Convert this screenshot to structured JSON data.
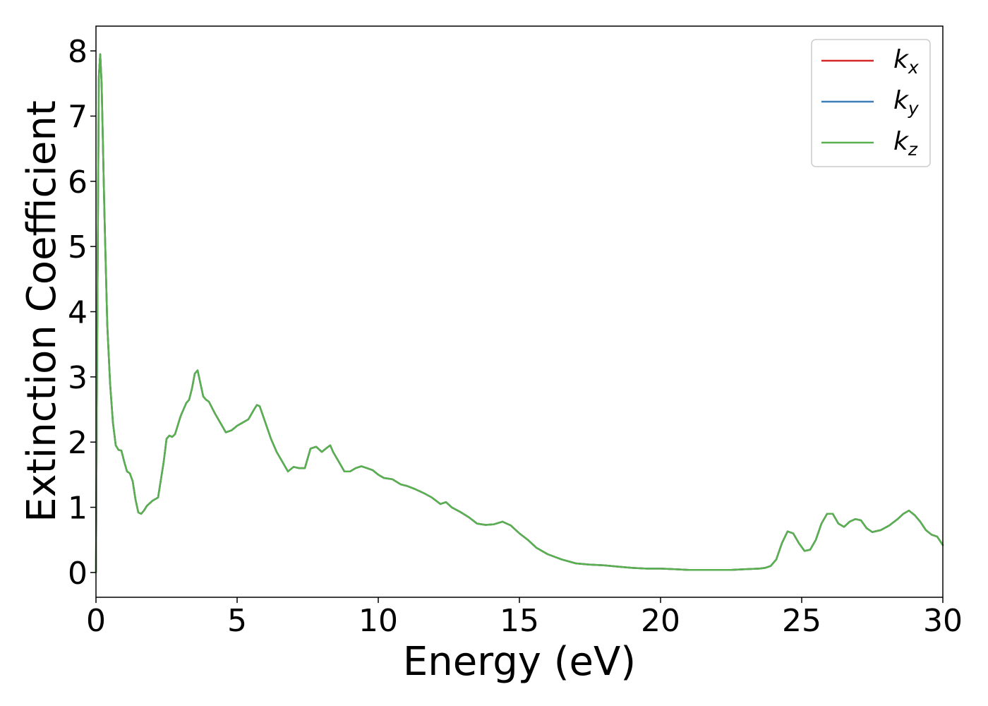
{
  "chart_data": {
    "type": "line",
    "title": "",
    "xlabel": "Energy (eV)",
    "ylabel": "Extinction Coefficient",
    "xlim": [
      0,
      30
    ],
    "ylim": [
      -0.38,
      8.38
    ],
    "xticks": [
      "0",
      "5",
      "10",
      "15",
      "20",
      "25",
      "30"
    ],
    "yticks": [
      "0",
      "1",
      "2",
      "3",
      "4",
      "5",
      "6",
      "7",
      "8"
    ],
    "grid": false,
    "legend": {
      "placement": "top-right"
    },
    "x": [
      0,
      0.05,
      0.1,
      0.15,
      0.2,
      0.3,
      0.4,
      0.5,
      0.6,
      0.7,
      0.8,
      0.9,
      1.0,
      1.1,
      1.2,
      1.3,
      1.4,
      1.5,
      1.6,
      1.7,
      1.8,
      2.0,
      2.2,
      2.4,
      2.5,
      2.6,
      2.7,
      2.8,
      3.0,
      3.2,
      3.3,
      3.4,
      3.5,
      3.6,
      3.7,
      3.8,
      3.9,
      4.0,
      4.2,
      4.4,
      4.6,
      4.8,
      5.0,
      5.2,
      5.4,
      5.6,
      5.7,
      5.8,
      6.0,
      6.2,
      6.4,
      6.6,
      6.8,
      7.0,
      7.2,
      7.4,
      7.6,
      7.8,
      8.0,
      8.2,
      8.3,
      8.4,
      8.6,
      8.8,
      9.0,
      9.2,
      9.4,
      9.6,
      9.8,
      10.0,
      10.2,
      10.5,
      10.8,
      11.0,
      11.3,
      11.6,
      11.9,
      12.2,
      12.4,
      12.6,
      12.9,
      13.2,
      13.5,
      13.8,
      14.1,
      14.4,
      14.7,
      15.0,
      15.3,
      15.6,
      16.0,
      16.5,
      17.0,
      17.5,
      18.0,
      18.5,
      19.0,
      19.5,
      20.0,
      20.5,
      21.0,
      21.5,
      22.0,
      22.5,
      23.0,
      23.5,
      23.7,
      23.9,
      24.1,
      24.3,
      24.5,
      24.7,
      24.9,
      25.1,
      25.3,
      25.5,
      25.7,
      25.9,
      26.1,
      26.3,
      26.5,
      26.7,
      26.9,
      27.1,
      27.3,
      27.5,
      27.8,
      28.1,
      28.4,
      28.6,
      28.8,
      29.0,
      29.2,
      29.4,
      29.6,
      29.8,
      30.0
    ],
    "series": [
      {
        "name": "k_x",
        "color": "#d62728",
        "values": [
          0.0,
          4.0,
          7.6,
          7.95,
          7.5,
          5.5,
          3.8,
          2.9,
          2.3,
          1.95,
          1.88,
          1.87,
          1.7,
          1.55,
          1.52,
          1.4,
          1.12,
          0.92,
          0.9,
          0.95,
          1.02,
          1.1,
          1.15,
          1.7,
          2.05,
          2.1,
          2.08,
          2.12,
          2.4,
          2.6,
          2.65,
          2.82,
          3.05,
          3.1,
          2.9,
          2.7,
          2.65,
          2.62,
          2.45,
          2.3,
          2.15,
          2.18,
          2.25,
          2.3,
          2.35,
          2.5,
          2.57,
          2.55,
          2.3,
          2.05,
          1.85,
          1.7,
          1.55,
          1.62,
          1.6,
          1.6,
          1.9,
          1.93,
          1.85,
          1.92,
          1.95,
          1.85,
          1.7,
          1.55,
          1.55,
          1.6,
          1.63,
          1.6,
          1.57,
          1.5,
          1.45,
          1.43,
          1.35,
          1.33,
          1.28,
          1.22,
          1.15,
          1.05,
          1.08,
          1.0,
          0.93,
          0.85,
          0.75,
          0.73,
          0.74,
          0.78,
          0.72,
          0.6,
          0.5,
          0.38,
          0.28,
          0.2,
          0.14,
          0.12,
          0.11,
          0.09,
          0.07,
          0.06,
          0.06,
          0.05,
          0.04,
          0.04,
          0.04,
          0.04,
          0.05,
          0.06,
          0.07,
          0.1,
          0.2,
          0.45,
          0.63,
          0.6,
          0.45,
          0.33,
          0.35,
          0.5,
          0.75,
          0.9,
          0.9,
          0.75,
          0.7,
          0.78,
          0.82,
          0.8,
          0.68,
          0.62,
          0.65,
          0.72,
          0.82,
          0.9,
          0.95,
          0.88,
          0.78,
          0.65,
          0.58,
          0.55,
          0.42
        ]
      },
      {
        "name": "k_y",
        "color": "#3a7fb8",
        "values": [
          0.0,
          4.0,
          7.6,
          7.95,
          7.5,
          5.5,
          3.8,
          2.9,
          2.3,
          1.95,
          1.88,
          1.87,
          1.7,
          1.55,
          1.52,
          1.4,
          1.12,
          0.92,
          0.9,
          0.95,
          1.02,
          1.1,
          1.15,
          1.7,
          2.05,
          2.1,
          2.08,
          2.12,
          2.4,
          2.6,
          2.65,
          2.82,
          3.05,
          3.1,
          2.9,
          2.7,
          2.65,
          2.62,
          2.45,
          2.3,
          2.15,
          2.18,
          2.25,
          2.3,
          2.35,
          2.5,
          2.57,
          2.55,
          2.3,
          2.05,
          1.85,
          1.7,
          1.55,
          1.62,
          1.6,
          1.6,
          1.9,
          1.93,
          1.85,
          1.92,
          1.95,
          1.85,
          1.7,
          1.55,
          1.55,
          1.6,
          1.63,
          1.6,
          1.57,
          1.5,
          1.45,
          1.43,
          1.35,
          1.33,
          1.28,
          1.22,
          1.15,
          1.05,
          1.08,
          1.0,
          0.93,
          0.85,
          0.75,
          0.73,
          0.74,
          0.78,
          0.72,
          0.6,
          0.5,
          0.38,
          0.28,
          0.2,
          0.14,
          0.12,
          0.11,
          0.09,
          0.07,
          0.06,
          0.06,
          0.05,
          0.04,
          0.04,
          0.04,
          0.04,
          0.05,
          0.06,
          0.07,
          0.1,
          0.2,
          0.45,
          0.63,
          0.6,
          0.45,
          0.33,
          0.35,
          0.5,
          0.75,
          0.9,
          0.9,
          0.75,
          0.7,
          0.78,
          0.82,
          0.8,
          0.68,
          0.62,
          0.65,
          0.72,
          0.82,
          0.9,
          0.95,
          0.88,
          0.78,
          0.65,
          0.58,
          0.55,
          0.42
        ]
      },
      {
        "name": "k_z",
        "color": "#59b04f",
        "values": [
          0.0,
          4.0,
          7.6,
          7.95,
          7.5,
          5.5,
          3.8,
          2.9,
          2.3,
          1.95,
          1.88,
          1.87,
          1.7,
          1.55,
          1.52,
          1.4,
          1.12,
          0.92,
          0.9,
          0.95,
          1.02,
          1.1,
          1.15,
          1.7,
          2.05,
          2.1,
          2.08,
          2.12,
          2.4,
          2.6,
          2.65,
          2.82,
          3.05,
          3.1,
          2.9,
          2.7,
          2.65,
          2.62,
          2.45,
          2.3,
          2.15,
          2.18,
          2.25,
          2.3,
          2.35,
          2.5,
          2.57,
          2.55,
          2.3,
          2.05,
          1.85,
          1.7,
          1.55,
          1.62,
          1.6,
          1.6,
          1.9,
          1.93,
          1.85,
          1.92,
          1.95,
          1.85,
          1.7,
          1.55,
          1.55,
          1.6,
          1.63,
          1.6,
          1.57,
          1.5,
          1.45,
          1.43,
          1.35,
          1.33,
          1.28,
          1.22,
          1.15,
          1.05,
          1.08,
          1.0,
          0.93,
          0.85,
          0.75,
          0.73,
          0.74,
          0.78,
          0.72,
          0.6,
          0.5,
          0.38,
          0.28,
          0.2,
          0.14,
          0.12,
          0.11,
          0.09,
          0.07,
          0.06,
          0.06,
          0.05,
          0.04,
          0.04,
          0.04,
          0.04,
          0.05,
          0.06,
          0.07,
          0.1,
          0.2,
          0.45,
          0.63,
          0.6,
          0.45,
          0.33,
          0.35,
          0.5,
          0.75,
          0.9,
          0.9,
          0.75,
          0.7,
          0.78,
          0.82,
          0.8,
          0.68,
          0.62,
          0.65,
          0.72,
          0.82,
          0.9,
          0.95,
          0.88,
          0.78,
          0.65,
          0.58,
          0.55,
          0.42
        ]
      }
    ]
  }
}
